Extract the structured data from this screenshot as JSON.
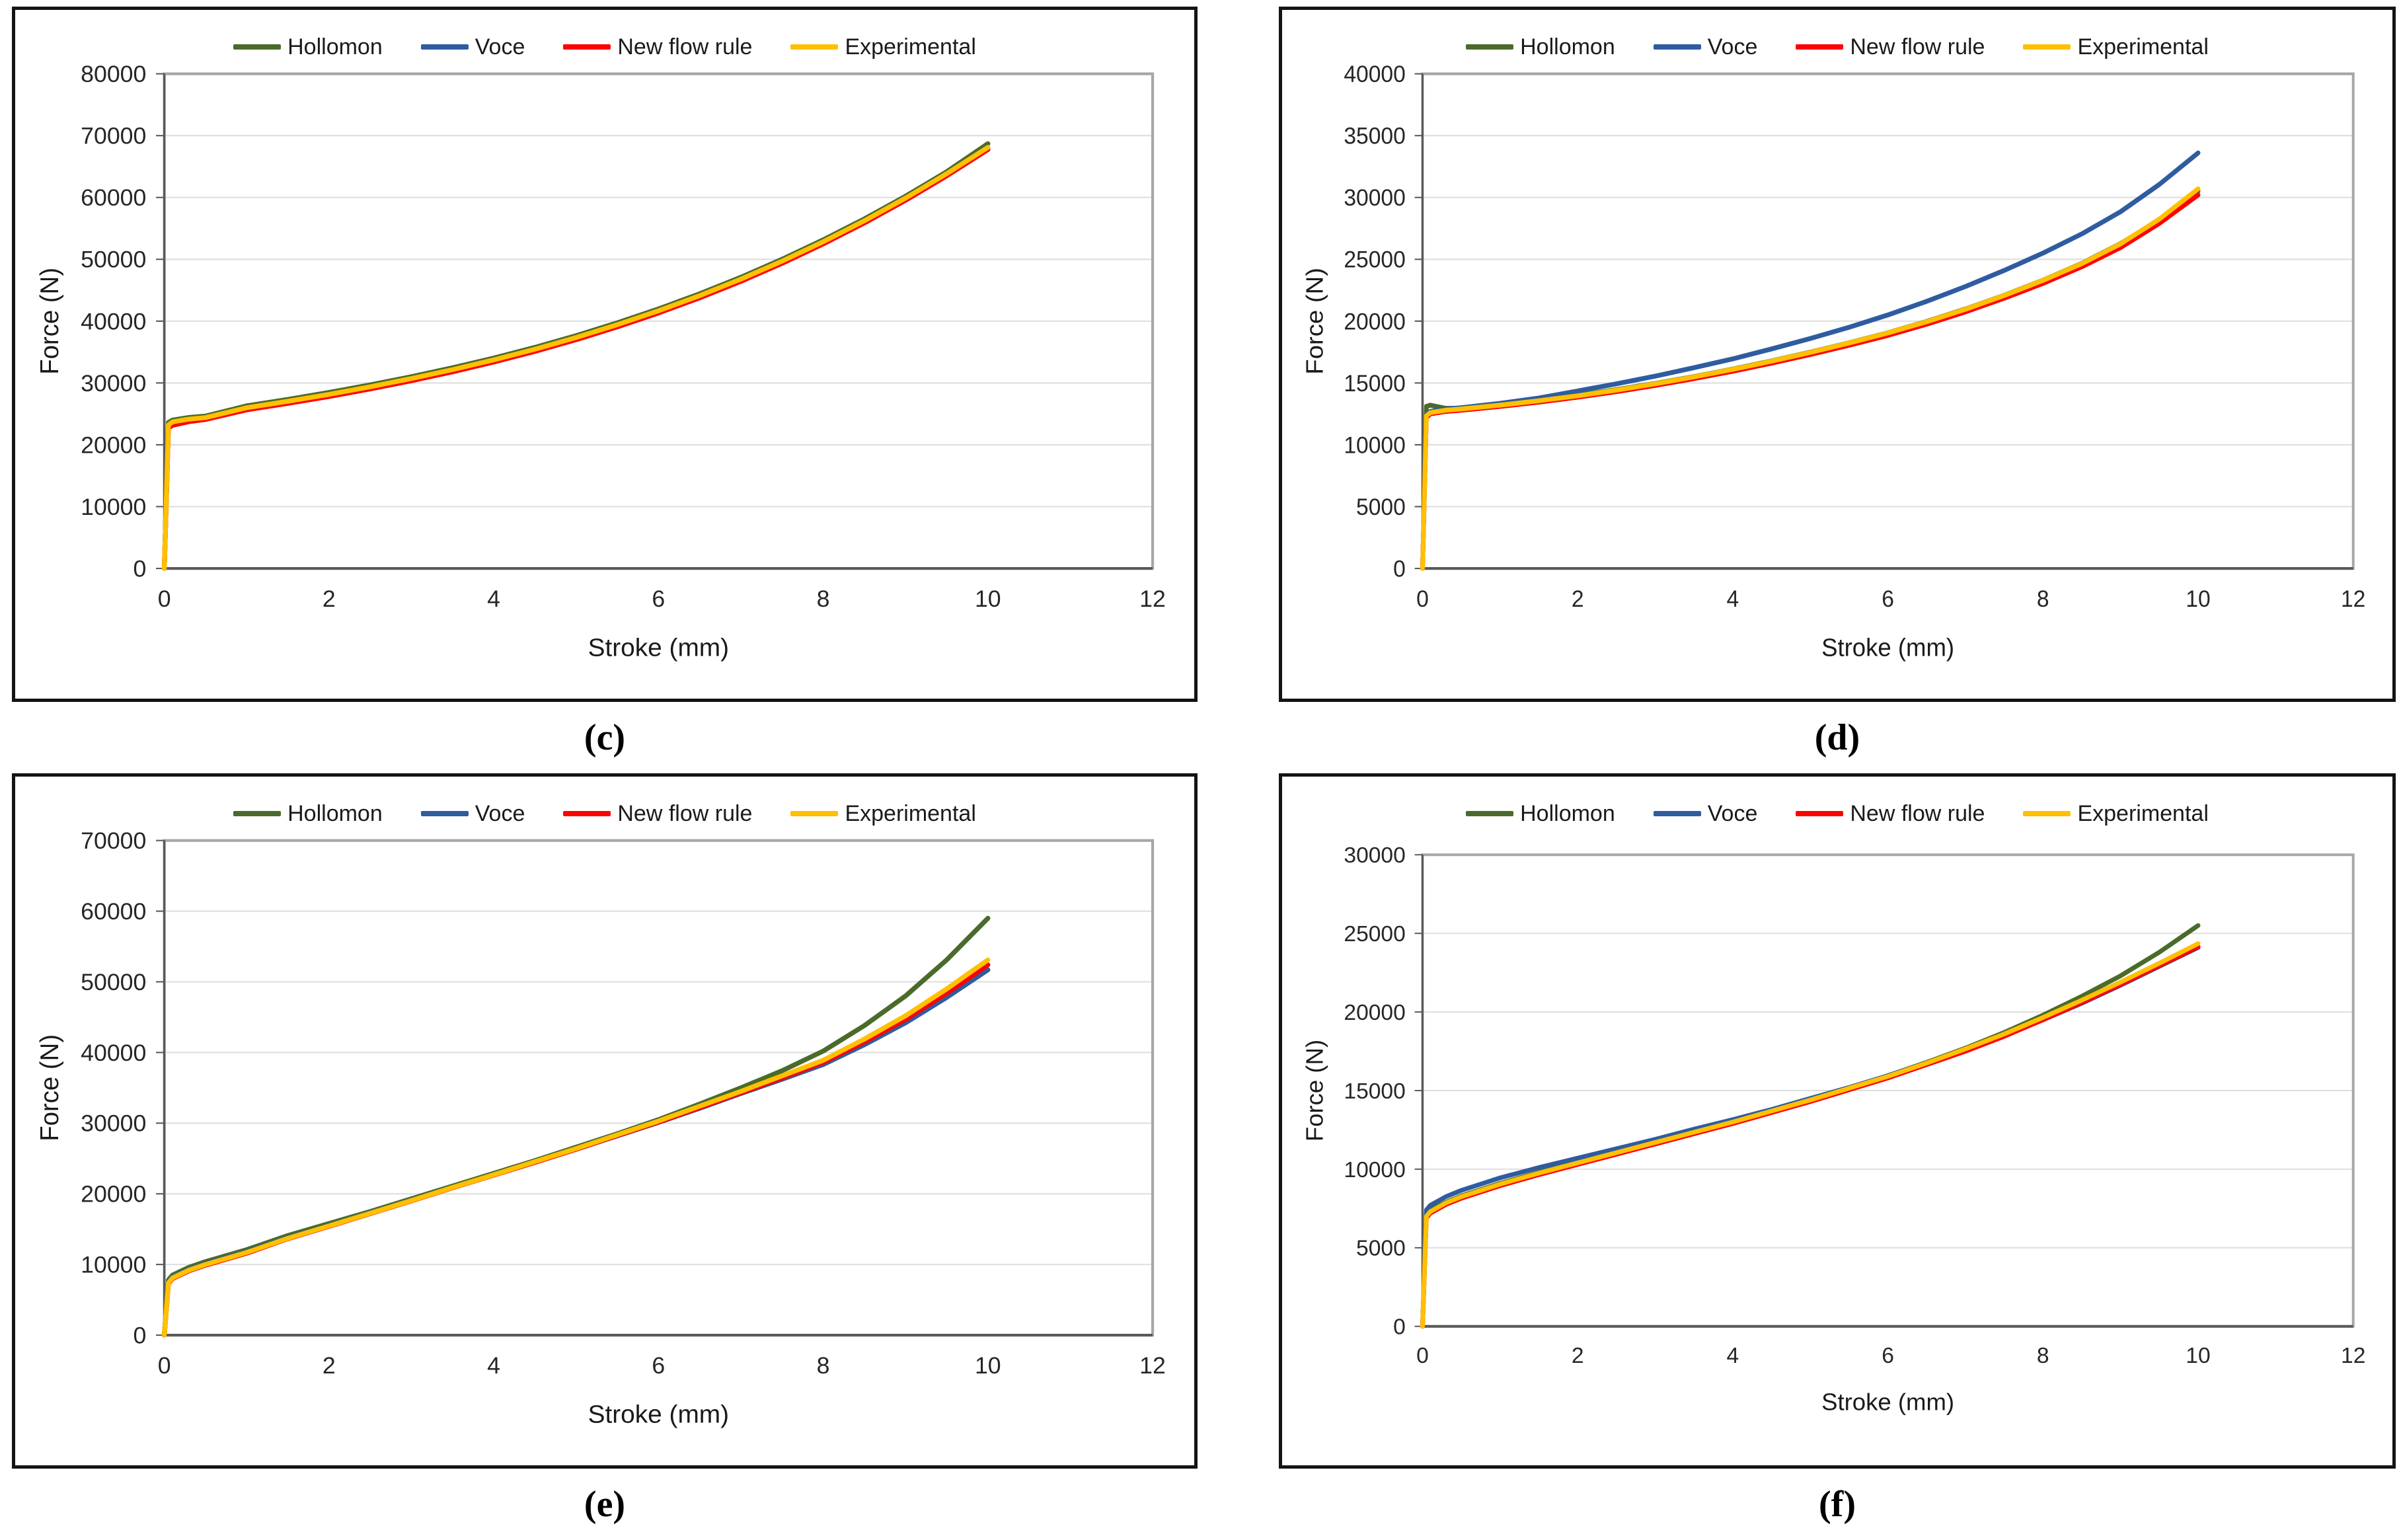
{
  "chart_data": [
    {
      "caption": "(c)",
      "type": "line",
      "title": "",
      "xlabel": "Stroke (mm)",
      "ylabel": "Force (N)",
      "xlim": [
        0,
        12
      ],
      "xticks": [
        0,
        2,
        4,
        6,
        8,
        10,
        12
      ],
      "ylim": [
        0,
        80000
      ],
      "yticks": [
        0,
        10000,
        20000,
        30000,
        40000,
        50000,
        60000,
        70000,
        80000
      ],
      "grid": "horizontal",
      "legend_position": "top-center",
      "x": [
        0,
        0.05,
        0.1,
        0.3,
        0.5,
        1,
        1.5,
        2,
        2.5,
        3,
        3.5,
        4,
        4.5,
        5,
        5.5,
        6,
        6.5,
        7,
        7.5,
        8,
        8.5,
        9,
        9.5,
        10
      ],
      "series": [
        {
          "name": "Hollomon",
          "color": "#4a6b2a",
          "y": [
            0,
            23600,
            24000,
            24420,
            24640,
            26300,
            27340,
            28460,
            29680,
            31010,
            32450,
            34030,
            35760,
            37650,
            39720,
            41970,
            44420,
            47090,
            49990,
            53140,
            56530,
            60200,
            64150,
            68700
          ]
        },
        {
          "name": "Voce",
          "color": "#2f5ca0",
          "y": [
            0,
            22900,
            23350,
            23900,
            24200,
            25750,
            26790,
            27910,
            29130,
            30460,
            31900,
            33480,
            35210,
            37100,
            39170,
            41420,
            43870,
            46540,
            49440,
            52590,
            55980,
            59650,
            63600,
            67850
          ]
        },
        {
          "name": "New flow rule",
          "color": "#ff0000",
          "y": [
            0,
            22700,
            23150,
            23750,
            24100,
            25650,
            26690,
            27810,
            29030,
            30360,
            31800,
            33380,
            35110,
            37000,
            39070,
            41320,
            43770,
            46440,
            49340,
            52490,
            55880,
            59550,
            63500,
            67750
          ]
        },
        {
          "name": "Experimental",
          "color": "#ffc000",
          "y": [
            0,
            23200,
            23700,
            24150,
            24400,
            26000,
            27040,
            28160,
            29380,
            30710,
            32150,
            33730,
            35460,
            37350,
            39420,
            41670,
            44120,
            46790,
            49690,
            52840,
            56230,
            59900,
            63850,
            68100
          ]
        }
      ]
    },
    {
      "caption": "(d)",
      "type": "line",
      "title": "",
      "xlabel": "Stroke (mm)",
      "ylabel": "Force (N)",
      "xlim": [
        0,
        12
      ],
      "xticks": [
        0,
        2,
        4,
        6,
        8,
        10,
        12
      ],
      "ylim": [
        0,
        40000
      ],
      "yticks": [
        0,
        5000,
        10000,
        15000,
        20000,
        25000,
        30000,
        35000,
        40000
      ],
      "grid": "horizontal",
      "legend_position": "top-center",
      "x": [
        0,
        0.05,
        0.1,
        0.3,
        0.5,
        1,
        1.5,
        2,
        2.5,
        3,
        3.5,
        4,
        4.5,
        5,
        5.5,
        6,
        6.5,
        7,
        7.5,
        8,
        8.5,
        9,
        9.5,
        10
      ],
      "series": [
        {
          "name": "Hollomon",
          "color": "#4a6b2a",
          "y": [
            0,
            13100,
            13200,
            12950,
            12950,
            13250,
            13600,
            14000,
            14460,
            14960,
            15510,
            16120,
            16780,
            17490,
            18250,
            19060,
            19970,
            20980,
            22090,
            23310,
            24670,
            26270,
            28200,
            30500
          ]
        },
        {
          "name": "Voce",
          "color": "#2f5ca0",
          "y": [
            0,
            12450,
            12700,
            12900,
            13000,
            13350,
            13780,
            14350,
            14930,
            15550,
            16230,
            16950,
            17750,
            18600,
            19500,
            20500,
            21600,
            22800,
            24100,
            25500,
            27050,
            28850,
            31050,
            33600
          ]
        },
        {
          "name": "New flow rule",
          "color": "#ff0000",
          "y": [
            0,
            12200,
            12500,
            12700,
            12800,
            13100,
            13450,
            13850,
            14300,
            14800,
            15350,
            15950,
            16600,
            17300,
            18050,
            18850,
            19750,
            20750,
            21850,
            23050,
            24400,
            25950,
            27900,
            30200
          ]
        },
        {
          "name": "Experimental",
          "color": "#ffc000",
          "y": [
            0,
            12350,
            12600,
            12800,
            12900,
            13200,
            13560,
            13960,
            14420,
            14930,
            15490,
            16100,
            16760,
            17470,
            18230,
            19040,
            19950,
            20960,
            22070,
            23290,
            24650,
            26250,
            28250,
            30700
          ]
        }
      ]
    },
    {
      "caption": "(e)",
      "type": "line",
      "title": "",
      "xlabel": "Stroke (mm)",
      "ylabel": "Force (N)",
      "xlim": [
        0,
        12
      ],
      "xticks": [
        0,
        2,
        4,
        6,
        8,
        10,
        12
      ],
      "ylim": [
        0,
        70000
      ],
      "yticks": [
        0,
        10000,
        20000,
        30000,
        40000,
        50000,
        60000,
        70000
      ],
      "grid": "horizontal",
      "legend_position": "top-center",
      "x": [
        0,
        0.05,
        0.1,
        0.3,
        0.5,
        1,
        1.5,
        2,
        2.5,
        3,
        3.5,
        4,
        4.5,
        5,
        5.5,
        6,
        6.5,
        7,
        7.5,
        8,
        8.5,
        9,
        9.5,
        10
      ],
      "series": [
        {
          "name": "Hollomon",
          "color": "#4a6b2a",
          "y": [
            0,
            7800,
            8500,
            9600,
            10400,
            12100,
            14100,
            15800,
            17500,
            19300,
            21100,
            22900,
            24700,
            26600,
            28500,
            30500,
            32700,
            35000,
            37400,
            40200,
            43800,
            48000,
            53100,
            59000
          ]
        },
        {
          "name": "Voce",
          "color": "#2f5ca0",
          "y": [
            0,
            7500,
            8200,
            9300,
            10100,
            11800,
            13800,
            15500,
            17300,
            19100,
            20900,
            22700,
            24500,
            26300,
            28200,
            30100,
            32100,
            34200,
            36200,
            38300,
            41100,
            44200,
            47800,
            51700
          ]
        },
        {
          "name": "New flow rule",
          "color": "#ff0000",
          "y": [
            0,
            7300,
            8000,
            9100,
            9900,
            11600,
            13650,
            15400,
            17200,
            19000,
            20850,
            22650,
            24450,
            26300,
            28250,
            30150,
            32200,
            34300,
            36400,
            38600,
            41500,
            44700,
            48400,
            52400
          ]
        },
        {
          "name": "Experimental",
          "color": "#ffc000",
          "y": [
            0,
            7400,
            8100,
            9200,
            10000,
            11700,
            13700,
            15450,
            17250,
            19050,
            20900,
            22700,
            24550,
            26400,
            28350,
            30300,
            32400,
            34500,
            36700,
            38900,
            41900,
            45200,
            49000,
            53100
          ]
        }
      ]
    },
    {
      "caption": "(f)",
      "type": "line",
      "title": "",
      "xlabel": "Stroke (mm)",
      "ylabel": "Force (N)",
      "xlim": [
        0,
        12
      ],
      "xticks": [
        0,
        2,
        4,
        6,
        8,
        10,
        12
      ],
      "ylim": [
        0,
        30000
      ],
      "yticks": [
        0,
        5000,
        10000,
        15000,
        20000,
        25000,
        30000
      ],
      "grid": "horizontal",
      "legend_position": "top-center",
      "x": [
        0,
        0.05,
        0.1,
        0.3,
        0.5,
        1,
        1.5,
        2,
        2.5,
        3,
        3.5,
        4,
        4.5,
        5,
        5.5,
        6,
        6.5,
        7,
        7.5,
        8,
        8.5,
        9,
        9.5,
        10
      ],
      "series": [
        {
          "name": "Hollomon",
          "color": "#4a6b2a",
          "y": [
            0,
            7100,
            7400,
            7900,
            8300,
            9100,
            9800,
            10400,
            11050,
            11700,
            12350,
            13000,
            13700,
            14400,
            15150,
            15950,
            16800,
            17700,
            18700,
            19800,
            21000,
            22300,
            23800,
            25500
          ]
        },
        {
          "name": "Voce",
          "color": "#2f5ca0",
          "y": [
            0,
            7400,
            7700,
            8250,
            8650,
            9450,
            10100,
            10700,
            11300,
            11900,
            12550,
            13150,
            13800,
            14500,
            15200,
            15950,
            16750,
            17600,
            18500,
            19500,
            20550,
            21700,
            22900,
            24100
          ]
        },
        {
          "name": "New flow rule",
          "color": "#ff0000",
          "y": [
            0,
            6900,
            7200,
            7750,
            8150,
            8950,
            9650,
            10300,
            10950,
            11600,
            12250,
            12900,
            13600,
            14300,
            15050,
            15800,
            16650,
            17500,
            18450,
            19500,
            20600,
            21750,
            22950,
            24150
          ]
        },
        {
          "name": "Experimental",
          "color": "#ffc000",
          "y": [
            0,
            7000,
            7300,
            7850,
            8250,
            9050,
            9750,
            10400,
            11050,
            11700,
            12350,
            13000,
            13700,
            14400,
            15150,
            15900,
            16750,
            17650,
            18600,
            19650,
            20750,
            21900,
            23100,
            24350
          ]
        }
      ]
    }
  ],
  "style": {
    "grid_color": "#dedede",
    "axis_color": "#595959",
    "plot_border_color": "#a6a6a6",
    "tick_text_color": "#262626"
  }
}
